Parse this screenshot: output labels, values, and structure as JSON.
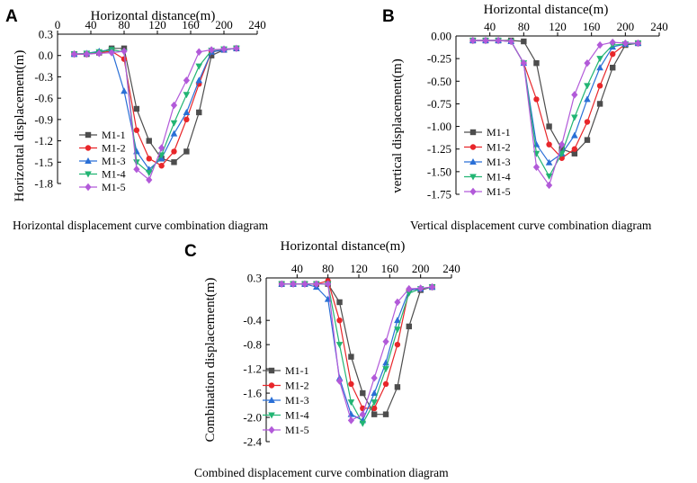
{
  "colors": {
    "M1-1": "#4d4d4d",
    "M1-2": "#e8262a",
    "M1-3": "#2a6fd6",
    "M1-4": "#22b573",
    "M1-5": "#b25ad9"
  },
  "chart_data": [
    {
      "id": "A",
      "type": "line",
      "panel_label": "A",
      "xlabel": "Horizontal distance(m)",
      "ylabel": "Horizontal displacement(m)",
      "caption": "Horizontal displacement curve combination diagram",
      "xlim": [
        0,
        240
      ],
      "ylim": [
        -1.8,
        0.3
      ],
      "xticks": [
        0,
        40,
        80,
        120,
        160,
        200,
        240
      ],
      "yticks": [
        0.3,
        0.0,
        -0.3,
        -0.6,
        -0.9,
        -1.2,
        -1.5,
        -1.8
      ],
      "ytick_labels": [
        "0.3",
        "0.0",
        "-0.3",
        "-0.6",
        "-0.9",
        "-1.2",
        "-1.5",
        "-1.8"
      ],
      "legend_position": "bottom-left",
      "series": [
        {
          "name": "M1-1",
          "marker": "square",
          "x": [
            20,
            35,
            50,
            65,
            80,
            95,
            110,
            125,
            140,
            155,
            170,
            185,
            200,
            215
          ],
          "y": [
            0.02,
            0.02,
            0.04,
            0.1,
            0.1,
            -0.75,
            -1.2,
            -1.45,
            -1.5,
            -1.35,
            -0.8,
            0.0,
            0.08,
            0.1
          ]
        },
        {
          "name": "M1-2",
          "marker": "circle",
          "x": [
            20,
            35,
            50,
            65,
            80,
            95,
            110,
            125,
            140,
            155,
            170,
            185,
            200,
            215
          ],
          "y": [
            0.02,
            0.02,
            0.04,
            0.06,
            -0.05,
            -1.05,
            -1.45,
            -1.55,
            -1.35,
            -0.9,
            -0.4,
            0.05,
            0.08,
            0.1
          ]
        },
        {
          "name": "M1-3",
          "marker": "triangle-up",
          "x": [
            20,
            35,
            50,
            65,
            80,
            95,
            110,
            125,
            140,
            155,
            170,
            185,
            200,
            215
          ],
          "y": [
            0.02,
            0.03,
            0.06,
            0.08,
            -0.5,
            -1.35,
            -1.6,
            -1.45,
            -1.1,
            -0.8,
            -0.35,
            0.05,
            0.08,
            0.1
          ]
        },
        {
          "name": "M1-4",
          "marker": "triangle-down",
          "x": [
            20,
            35,
            50,
            65,
            80,
            95,
            110,
            125,
            140,
            155,
            170,
            185,
            200,
            215
          ],
          "y": [
            0.02,
            0.03,
            0.05,
            0.08,
            0.05,
            -1.5,
            -1.65,
            -1.4,
            -0.95,
            -0.55,
            -0.15,
            0.07,
            0.09,
            0.1
          ]
        },
        {
          "name": "M1-5",
          "marker": "diamond",
          "x": [
            20,
            35,
            50,
            65,
            80,
            95,
            110,
            125,
            140,
            155,
            170,
            185,
            200,
            215
          ],
          "y": [
            0.02,
            0.02,
            0.03,
            0.04,
            0.06,
            -1.6,
            -1.75,
            -1.3,
            -0.7,
            -0.35,
            0.05,
            0.08,
            0.09,
            0.1
          ]
        }
      ]
    },
    {
      "id": "B",
      "type": "line",
      "panel_label": "B",
      "xlabel": "Horizontal distance(m)",
      "ylabel": "vertical displacement(m)",
      "caption": "Vertical displacement curve combination diagram",
      "xlim": [
        0,
        240
      ],
      "ylim": [
        -1.75,
        0.0
      ],
      "xticks": [
        40,
        80,
        120,
        160,
        200,
        240
      ],
      "yticks": [
        0.0,
        -0.25,
        -0.5,
        -0.75,
        -1.0,
        -1.25,
        -1.5,
        -1.75
      ],
      "ytick_labels": [
        "0.00",
        "-0.25",
        "-0.50",
        "-0.75",
        "-1.00",
        "-1.25",
        "-1.50",
        "-1.75"
      ],
      "legend_position": "bottom-left",
      "series": [
        {
          "name": "M1-1",
          "marker": "square",
          "x": [
            20,
            35,
            50,
            65,
            80,
            95,
            110,
            125,
            140,
            155,
            170,
            185,
            200,
            215
          ],
          "y": [
            -0.05,
            -0.05,
            -0.05,
            -0.05,
            -0.06,
            -0.3,
            -1.0,
            -1.25,
            -1.3,
            -1.15,
            -0.75,
            -0.35,
            -0.1,
            -0.08
          ]
        },
        {
          "name": "M1-2",
          "marker": "circle",
          "x": [
            20,
            35,
            50,
            65,
            80,
            95,
            110,
            125,
            140,
            155,
            170,
            185,
            200,
            215
          ],
          "y": [
            -0.05,
            -0.05,
            -0.05,
            -0.06,
            -0.3,
            -0.7,
            -1.2,
            -1.35,
            -1.25,
            -0.95,
            -0.55,
            -0.2,
            -0.09,
            -0.08
          ]
        },
        {
          "name": "M1-3",
          "marker": "triangle-up",
          "x": [
            20,
            35,
            50,
            65,
            80,
            95,
            110,
            125,
            140,
            155,
            170,
            185,
            200,
            215
          ],
          "y": [
            -0.05,
            -0.05,
            -0.05,
            -0.06,
            -0.3,
            -1.2,
            -1.4,
            -1.3,
            -1.1,
            -0.7,
            -0.35,
            -0.12,
            -0.09,
            -0.08
          ]
        },
        {
          "name": "M1-4",
          "marker": "triangle-down",
          "x": [
            20,
            35,
            50,
            65,
            80,
            95,
            110,
            125,
            140,
            155,
            170,
            185,
            200,
            215
          ],
          "y": [
            -0.05,
            -0.05,
            -0.05,
            -0.06,
            -0.3,
            -1.3,
            -1.55,
            -1.3,
            -0.9,
            -0.55,
            -0.25,
            -0.1,
            -0.09,
            -0.08
          ]
        },
        {
          "name": "M1-5",
          "marker": "diamond",
          "x": [
            20,
            35,
            50,
            65,
            80,
            95,
            110,
            125,
            140,
            155,
            170,
            185,
            200,
            215
          ],
          "y": [
            -0.05,
            -0.05,
            -0.05,
            -0.06,
            -0.3,
            -1.45,
            -1.65,
            -1.2,
            -0.65,
            -0.3,
            -0.1,
            -0.07,
            -0.08,
            -0.08
          ]
        }
      ]
    },
    {
      "id": "C",
      "type": "line",
      "panel_label": "C",
      "xlabel": "Horizontal distance(m)",
      "ylabel": "Combination displacement(m)",
      "caption": "Combined displacement curve combination diagram",
      "xlim": [
        0,
        240
      ],
      "ylim": [
        -2.4,
        0.3
      ],
      "xticks": [
        40,
        80,
        120,
        160,
        200,
        240
      ],
      "yticks": [
        0.3,
        -0.4,
        -0.8,
        -1.2,
        -1.6,
        -2.0,
        -2.4
      ],
      "ytick_labels": [
        "0.3",
        "-0.4",
        "-0.8",
        "-1.2",
        "-1.6",
        "-2.0",
        "-2.4"
      ],
      "legend_position": "bottom-left",
      "series": [
        {
          "name": "M1-1",
          "marker": "square",
          "x": [
            20,
            35,
            50,
            65,
            80,
            95,
            110,
            125,
            140,
            155,
            170,
            185,
            200,
            215
          ],
          "y": [
            0.2,
            0.2,
            0.2,
            0.2,
            0.2,
            -0.1,
            -1.0,
            -1.6,
            -1.95,
            -1.95,
            -1.5,
            -0.5,
            0.1,
            0.15
          ]
        },
        {
          "name": "M1-2",
          "marker": "circle",
          "x": [
            20,
            35,
            50,
            65,
            80,
            95,
            110,
            125,
            140,
            155,
            170,
            185,
            200,
            215
          ],
          "y": [
            0.2,
            0.2,
            0.2,
            0.2,
            0.25,
            -0.4,
            -1.45,
            -1.85,
            -1.85,
            -1.45,
            -0.8,
            0.1,
            0.12,
            0.15
          ]
        },
        {
          "name": "M1-3",
          "marker": "triangle-up",
          "x": [
            20,
            35,
            50,
            65,
            80,
            95,
            110,
            125,
            140,
            155,
            170,
            185,
            200,
            215
          ],
          "y": [
            0.2,
            0.2,
            0.2,
            0.15,
            -0.05,
            -1.35,
            -1.95,
            -2.05,
            -1.6,
            -1.1,
            -0.4,
            0.1,
            0.12,
            0.15
          ]
        },
        {
          "name": "M1-4",
          "marker": "triangle-down",
          "x": [
            20,
            35,
            50,
            65,
            80,
            95,
            110,
            125,
            140,
            155,
            170,
            185,
            200,
            215
          ],
          "y": [
            0.2,
            0.2,
            0.2,
            0.2,
            0.2,
            -0.8,
            -1.75,
            -2.1,
            -1.75,
            -1.2,
            -0.55,
            0.05,
            0.12,
            0.15
          ]
        },
        {
          "name": "M1-5",
          "marker": "diamond",
          "x": [
            20,
            35,
            50,
            65,
            80,
            95,
            110,
            125,
            140,
            155,
            170,
            185,
            200,
            215
          ],
          "y": [
            0.2,
            0.2,
            0.2,
            0.2,
            0.2,
            -1.4,
            -2.05,
            -1.95,
            -1.35,
            -0.75,
            -0.1,
            0.12,
            0.13,
            0.15
          ]
        }
      ]
    }
  ]
}
